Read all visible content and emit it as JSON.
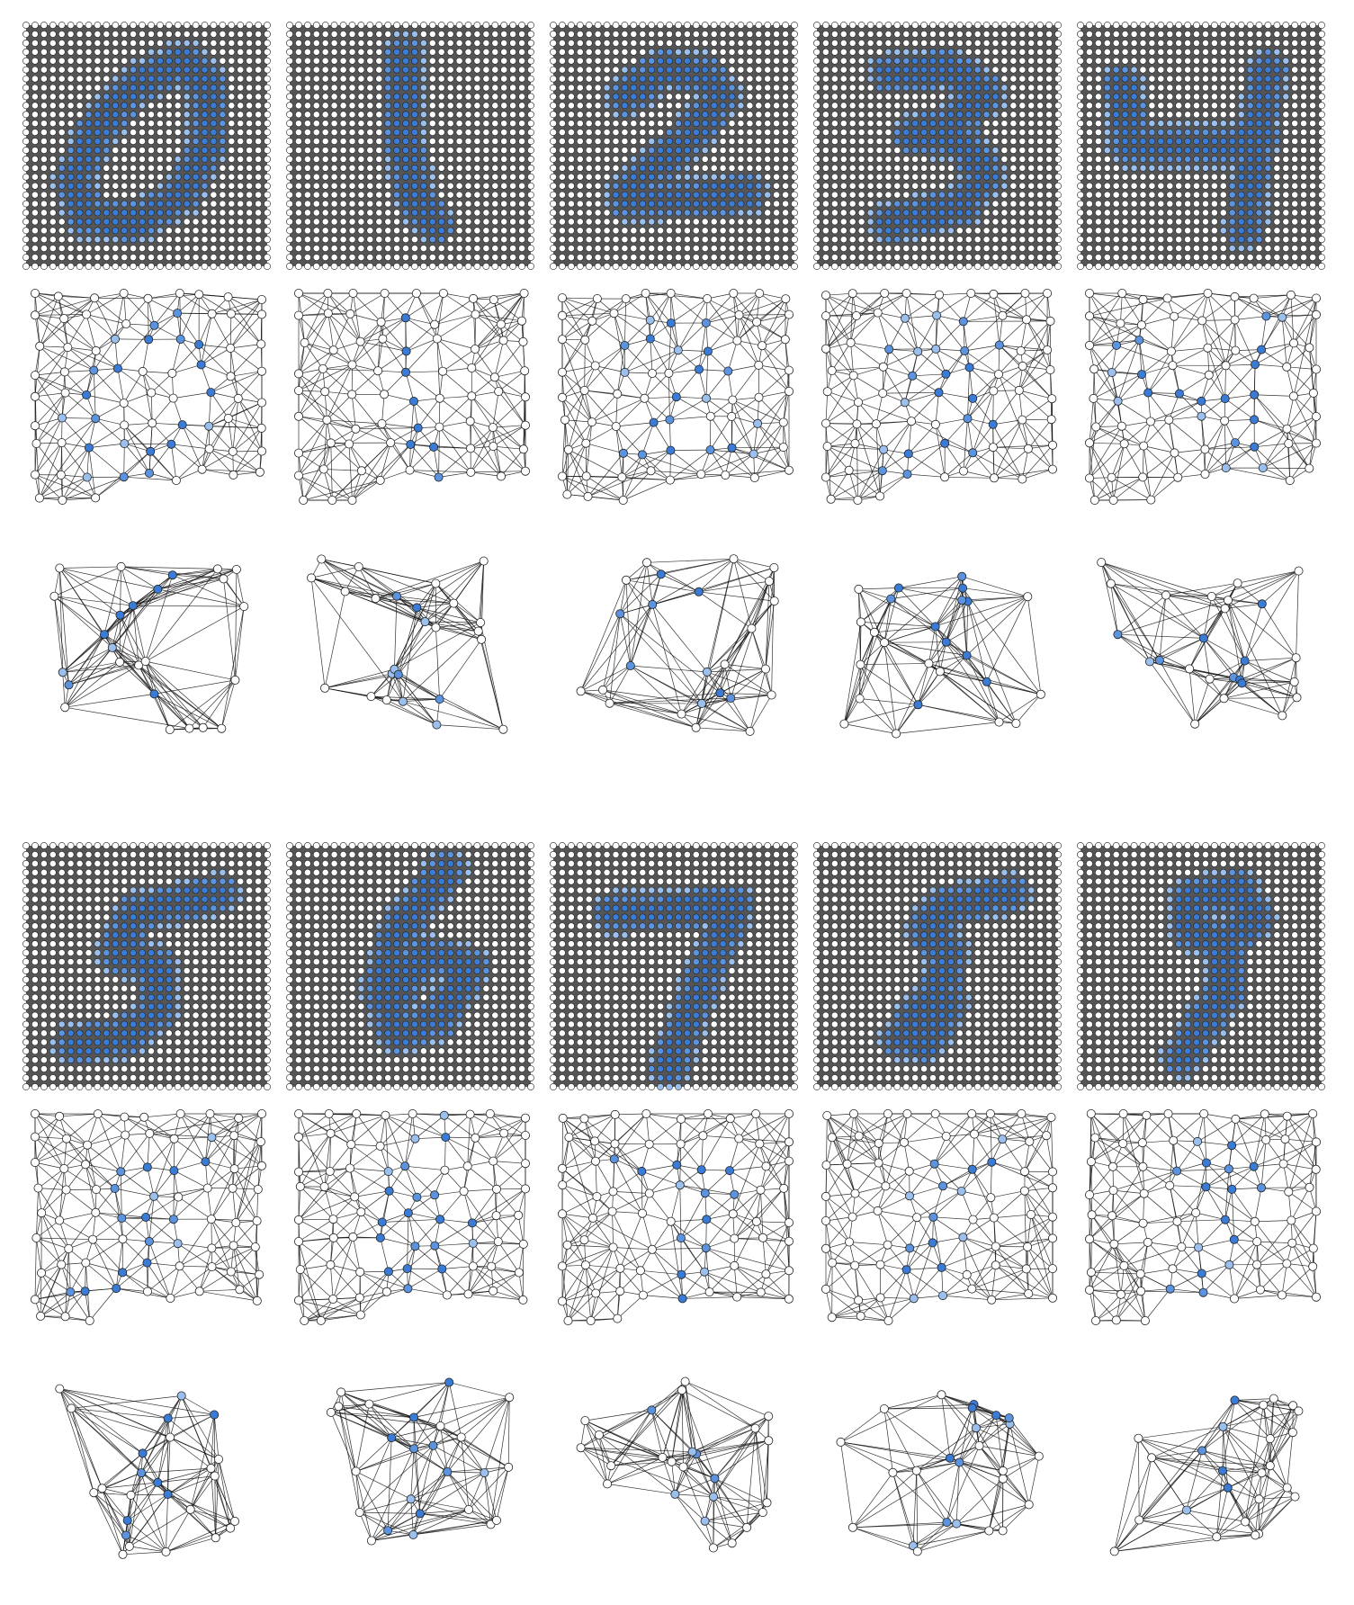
{
  "figure": {
    "description_text": "",
    "colors": {
      "node_fill": "#ffffff",
      "node_stroke": "#222222",
      "edge": "#111111",
      "active_strong": "#3a7bd5",
      "active_mid": "#5b93de",
      "active_light": "#9cc0ee",
      "grid_bg": "#555555"
    },
    "digits": [
      {
        "label": "0",
        "pixel_grid_size": 28,
        "level1_nodes": 75,
        "level2_nodes": 25
      },
      {
        "label": "1",
        "pixel_grid_size": 28,
        "level1_nodes": 75,
        "level2_nodes": 25
      },
      {
        "label": "2",
        "pixel_grid_size": 28,
        "level1_nodes": 75,
        "level2_nodes": 25
      },
      {
        "label": "3",
        "pixel_grid_size": 28,
        "level1_nodes": 75,
        "level2_nodes": 25
      },
      {
        "label": "4",
        "pixel_grid_size": 28,
        "level1_nodes": 75,
        "level2_nodes": 25
      },
      {
        "label": "5",
        "pixel_grid_size": 28,
        "level1_nodes": 75,
        "level2_nodes": 25
      },
      {
        "label": "6",
        "pixel_grid_size": 28,
        "level1_nodes": 75,
        "level2_nodes": 25
      },
      {
        "label": "7",
        "pixel_grid_size": 28,
        "level1_nodes": 75,
        "level2_nodes": 25
      },
      {
        "label": "8",
        "pixel_grid_size": 28,
        "level1_nodes": 75,
        "level2_nodes": 25
      },
      {
        "label": "9",
        "pixel_grid_size": 28,
        "level1_nodes": 75,
        "level2_nodes": 25
      }
    ]
  }
}
